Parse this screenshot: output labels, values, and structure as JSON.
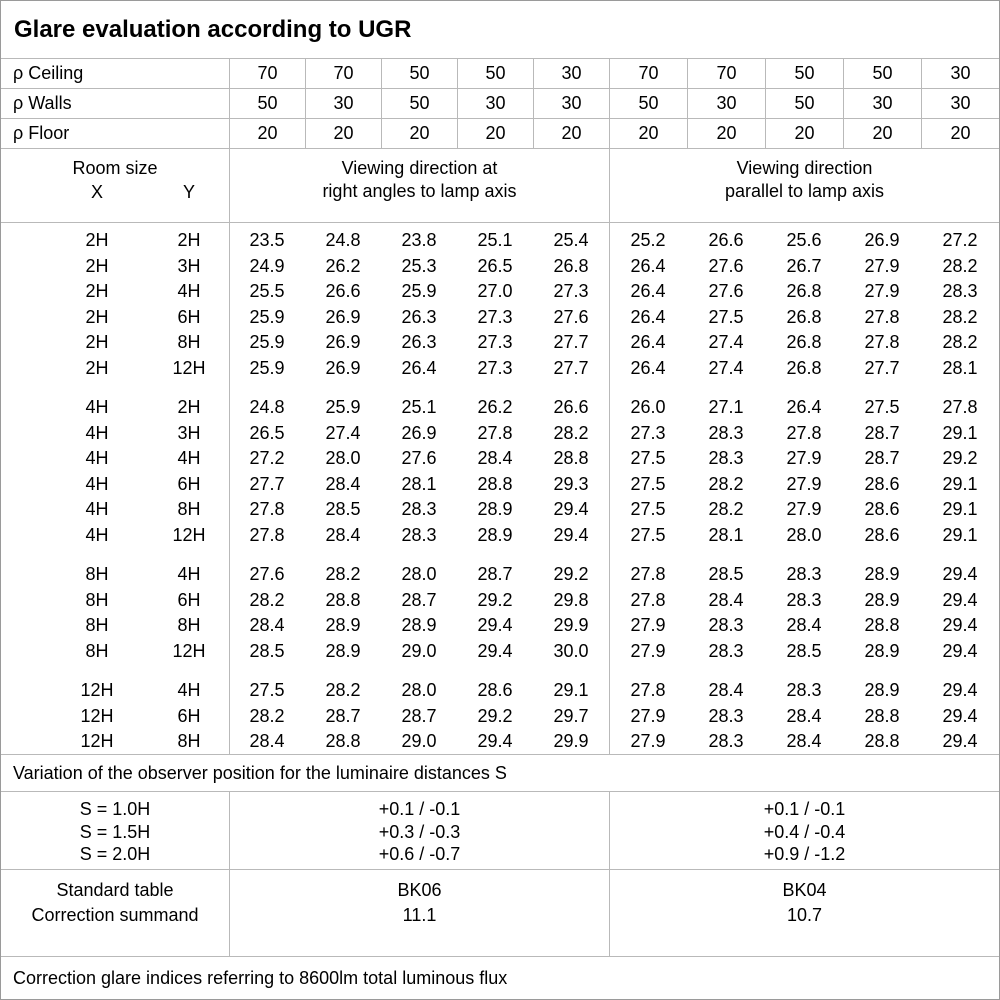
{
  "title": "Glare evaluation according to UGR",
  "header": {
    "rho_rows": [
      {
        "label": "ρ Ceiling",
        "values": [
          "70",
          "70",
          "50",
          "50",
          "30",
          "70",
          "70",
          "50",
          "50",
          "30"
        ]
      },
      {
        "label": "ρ Walls",
        "values": [
          "50",
          "30",
          "50",
          "30",
          "30",
          "50",
          "30",
          "50",
          "30",
          "30"
        ]
      },
      {
        "label": "ρ Floor",
        "values": [
          "20",
          "20",
          "20",
          "20",
          "20",
          "20",
          "20",
          "20",
          "20",
          "20"
        ]
      }
    ],
    "room_size_label": "Room size",
    "x_label": "X",
    "y_label": "Y",
    "group1_lines": [
      "Viewing direction at",
      "right angles to lamp axis"
    ],
    "group2_lines": [
      "Viewing direction",
      "parallel to lamp axis"
    ]
  },
  "blocks": [
    {
      "rows": [
        {
          "x": "2H",
          "y": "2H",
          "values": [
            "23.5",
            "24.8",
            "23.8",
            "25.1",
            "25.4",
            "25.2",
            "26.6",
            "25.6",
            "26.9",
            "27.2"
          ]
        },
        {
          "x": "2H",
          "y": "3H",
          "values": [
            "24.9",
            "26.2",
            "25.3",
            "26.5",
            "26.8",
            "26.4",
            "27.6",
            "26.7",
            "27.9",
            "28.2"
          ]
        },
        {
          "x": "2H",
          "y": "4H",
          "values": [
            "25.5",
            "26.6",
            "25.9",
            "27.0",
            "27.3",
            "26.4",
            "27.6",
            "26.8",
            "27.9",
            "28.3"
          ]
        },
        {
          "x": "2H",
          "y": "6H",
          "values": [
            "25.9",
            "26.9",
            "26.3",
            "27.3",
            "27.6",
            "26.4",
            "27.5",
            "26.8",
            "27.8",
            "28.2"
          ]
        },
        {
          "x": "2H",
          "y": "8H",
          "values": [
            "25.9",
            "26.9",
            "26.3",
            "27.3",
            "27.7",
            "26.4",
            "27.4",
            "26.8",
            "27.8",
            "28.2"
          ]
        },
        {
          "x": "2H",
          "y": "12H",
          "values": [
            "25.9",
            "26.9",
            "26.4",
            "27.3",
            "27.7",
            "26.4",
            "27.4",
            "26.8",
            "27.7",
            "28.1"
          ]
        }
      ]
    },
    {
      "rows": [
        {
          "x": "4H",
          "y": "2H",
          "values": [
            "24.8",
            "25.9",
            "25.1",
            "26.2",
            "26.6",
            "26.0",
            "27.1",
            "26.4",
            "27.5",
            "27.8"
          ]
        },
        {
          "x": "4H",
          "y": "3H",
          "values": [
            "26.5",
            "27.4",
            "26.9",
            "27.8",
            "28.2",
            "27.3",
            "28.3",
            "27.8",
            "28.7",
            "29.1"
          ]
        },
        {
          "x": "4H",
          "y": "4H",
          "values": [
            "27.2",
            "28.0",
            "27.6",
            "28.4",
            "28.8",
            "27.5",
            "28.3",
            "27.9",
            "28.7",
            "29.2"
          ]
        },
        {
          "x": "4H",
          "y": "6H",
          "values": [
            "27.7",
            "28.4",
            "28.1",
            "28.8",
            "29.3",
            "27.5",
            "28.2",
            "27.9",
            "28.6",
            "29.1"
          ]
        },
        {
          "x": "4H",
          "y": "8H",
          "values": [
            "27.8",
            "28.5",
            "28.3",
            "28.9",
            "29.4",
            "27.5",
            "28.2",
            "27.9",
            "28.6",
            "29.1"
          ]
        },
        {
          "x": "4H",
          "y": "12H",
          "values": [
            "27.8",
            "28.4",
            "28.3",
            "28.9",
            "29.4",
            "27.5",
            "28.1",
            "28.0",
            "28.6",
            "29.1"
          ]
        }
      ]
    },
    {
      "rows": [
        {
          "x": "8H",
          "y": "4H",
          "values": [
            "27.6",
            "28.2",
            "28.0",
            "28.7",
            "29.2",
            "27.8",
            "28.5",
            "28.3",
            "28.9",
            "29.4"
          ]
        },
        {
          "x": "8H",
          "y": "6H",
          "values": [
            "28.2",
            "28.8",
            "28.7",
            "29.2",
            "29.8",
            "27.8",
            "28.4",
            "28.3",
            "28.9",
            "29.4"
          ]
        },
        {
          "x": "8H",
          "y": "8H",
          "values": [
            "28.4",
            "28.9",
            "28.9",
            "29.4",
            "29.9",
            "27.9",
            "28.3",
            "28.4",
            "28.8",
            "29.4"
          ]
        },
        {
          "x": "8H",
          "y": "12H",
          "values": [
            "28.5",
            "28.9",
            "29.0",
            "29.4",
            "30.0",
            "27.9",
            "28.3",
            "28.5",
            "28.9",
            "29.4"
          ]
        }
      ]
    },
    {
      "rows": [
        {
          "x": "12H",
          "y": "4H",
          "values": [
            "27.5",
            "28.2",
            "28.0",
            "28.6",
            "29.1",
            "27.8",
            "28.4",
            "28.3",
            "28.9",
            "29.4"
          ]
        },
        {
          "x": "12H",
          "y": "6H",
          "values": [
            "28.2",
            "28.7",
            "28.7",
            "29.2",
            "29.7",
            "27.9",
            "28.3",
            "28.4",
            "28.8",
            "29.4"
          ]
        },
        {
          "x": "12H",
          "y": "8H",
          "values": [
            "28.4",
            "28.8",
            "29.0",
            "29.4",
            "29.9",
            "27.9",
            "28.3",
            "28.4",
            "28.8",
            "29.4"
          ]
        }
      ]
    }
  ],
  "footer": {
    "variation_note": "Variation of the observer position for the luminaire distances S",
    "s_rows": [
      {
        "label": "S = 1.0H",
        "g1": "+0.1 / -0.1",
        "g2": "+0.1 / -0.1"
      },
      {
        "label": "S = 1.5H",
        "g1": "+0.3 / -0.3",
        "g2": "+0.4 / -0.4"
      },
      {
        "label": "S = 2.0H",
        "g1": "+0.6 / -0.7",
        "g2": "+0.9 / -1.2"
      }
    ],
    "standard": {
      "labels": [
        "Standard table",
        "Correction summand"
      ],
      "g1": [
        "BK06",
        "11.1"
      ],
      "g2": [
        "BK04",
        "10.7"
      ]
    },
    "bottom_note": "Correction glare indices referring to 8600lm total luminous flux"
  }
}
